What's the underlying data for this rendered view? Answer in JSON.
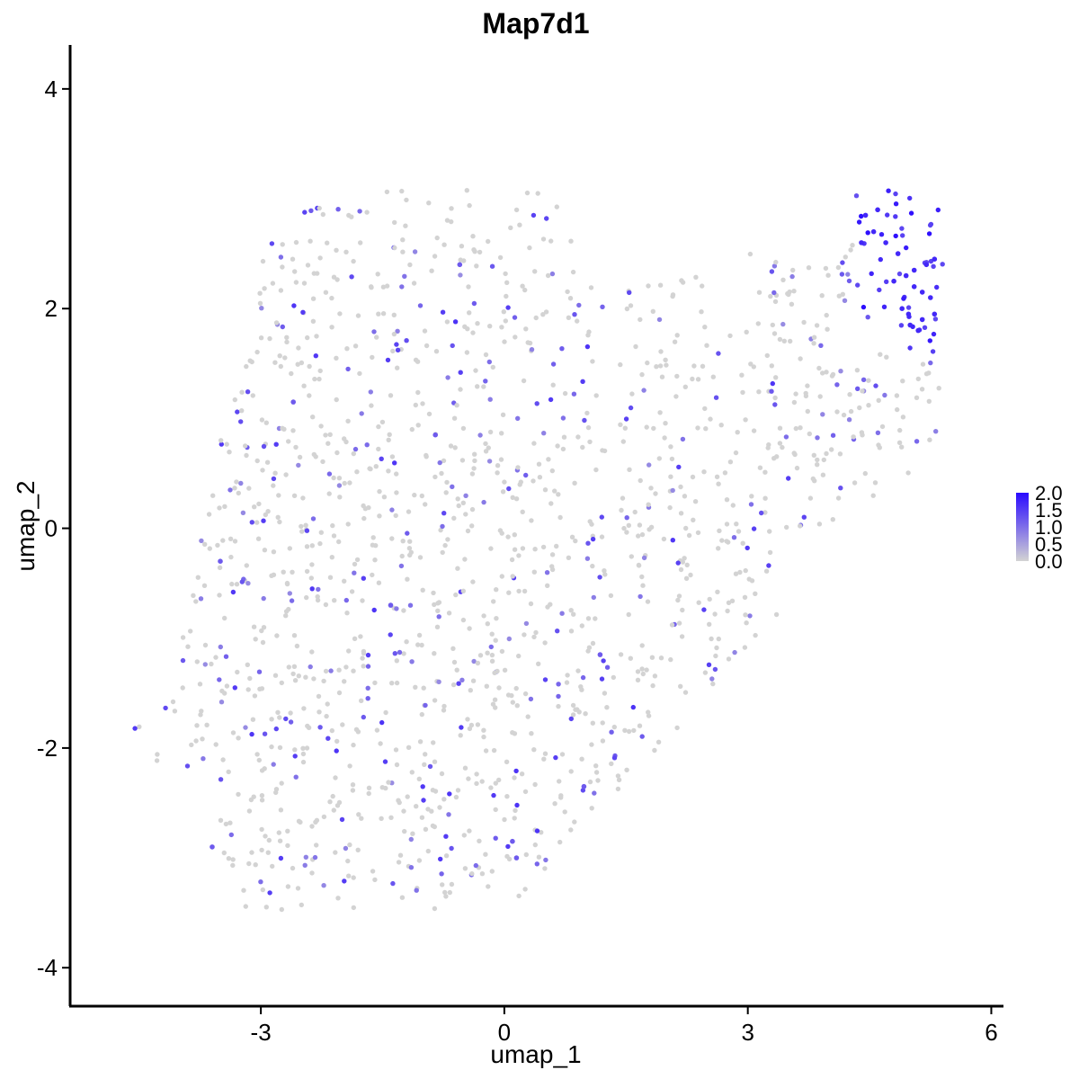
{
  "chart_data": {
    "type": "scatter",
    "title": "Map7d1",
    "xlabel": "umap_1",
    "ylabel": "umap_2",
    "xlim": [
      -5.35,
      6.15
    ],
    "ylim": [
      -4.35,
      4.4
    ],
    "x_ticks": [
      -3,
      0,
      3,
      6
    ],
    "x_tick_labels": [
      "-3",
      "0",
      "3",
      "6"
    ],
    "y_ticks": [
      -4,
      -2,
      0,
      2,
      4
    ],
    "y_tick_labels": [
      "-4",
      "-2",
      "0",
      "2",
      "4"
    ],
    "grid": false,
    "legend": {
      "placement": "right",
      "type": "colorbar",
      "range": [
        0,
        2.0
      ],
      "breaks": [
        2.0,
        1.5,
        1.0,
        0.5,
        0.0
      ],
      "break_labels": [
        "2.0",
        "1.5",
        "1.0",
        "0.5",
        "0.0"
      ],
      "low_color": "#d3d3d3",
      "high_color": "#2a0aff"
    },
    "colors": {
      "low": "#d3d3d3",
      "high": "#2a0aff"
    },
    "highlighted_points": [
      [
        4.45,
        2.85
      ],
      [
        4.55,
        2.7
      ],
      [
        4.7,
        2.6
      ],
      [
        4.85,
        2.5
      ],
      [
        4.95,
        2.3
      ],
      [
        5.05,
        2.2
      ],
      [
        5.15,
        2.15
      ],
      [
        5.25,
        2.1
      ],
      [
        5.3,
        1.95
      ],
      [
        4.9,
        2.0
      ],
      [
        5.0,
        1.85
      ],
      [
        5.1,
        1.8
      ],
      [
        4.98,
        1.95
      ],
      [
        5.2,
        2.4
      ],
      [
        4.6,
        2.9
      ],
      [
        4.4,
        2.6
      ],
      [
        5.3,
        2.45
      ],
      [
        5.05,
        2.35
      ],
      [
        4.8,
        2.25
      ],
      [
        5.15,
        1.9
      ],
      [
        0.1,
        -2.85
      ],
      [
        0.15,
        -3.0
      ],
      [
        -0.55,
        2.4
      ],
      [
        -3.6,
        -2.9
      ],
      [
        0.98,
        -2.35
      ],
      [
        -2.6,
        1.15
      ],
      [
        -0.85,
        0.85
      ],
      [
        1.18,
        -1.15
      ],
      [
        -1.4,
        -0.7
      ],
      [
        -3.5,
        -0.3
      ]
    ],
    "point_summary": "about 1600 cells; most near 0.0 (grey), high values concentrated at the upper-right tip"
  }
}
